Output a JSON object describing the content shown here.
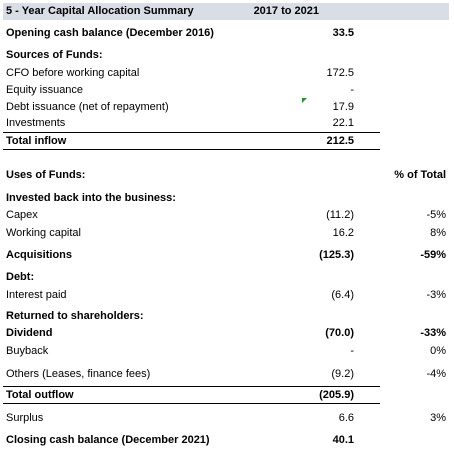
{
  "header": {
    "title": "5 - Year Capital Allocation Summary",
    "period": "2017 to 2021"
  },
  "opening": {
    "label": "Opening cash balance (December 2016)",
    "value": "33.5"
  },
  "sources": {
    "heading": "Sources of Funds:",
    "items": [
      {
        "label": "CFO before working capital",
        "value": "172.5"
      },
      {
        "label": "Equity issuance",
        "value": "-"
      },
      {
        "label": "Debt issuance (net of repayment)",
        "value": "17.9"
      },
      {
        "label": "Investments",
        "value": "22.1"
      }
    ],
    "total": {
      "label": "Total inflow",
      "value": "212.5"
    }
  },
  "uses": {
    "heading": "Uses of Funds:",
    "pct_header": "% of Total",
    "invested_heading": "Invested back into the business:",
    "capex": {
      "label": "Capex",
      "value": "(11.2)",
      "pct": "-5%"
    },
    "working_capital": {
      "label": "Working capital",
      "value": "16.2",
      "pct": "8%"
    },
    "acquisitions": {
      "label": "Acquisitions",
      "value": "(125.3)",
      "pct": "-59%"
    },
    "debt_heading": "Debt:",
    "interest": {
      "label": "Interest paid",
      "value": "(6.4)",
      "pct": "-3%"
    },
    "returned_heading": "Returned to shareholders:",
    "dividend": {
      "label": "Dividend",
      "value": "(70.0)",
      "pct": "-33%"
    },
    "buyback": {
      "label": "Buyback",
      "value": "-",
      "pct": "0%"
    },
    "others": {
      "label": "Others (Leases, finance fees)",
      "value": "(9.2)",
      "pct": "-4%"
    },
    "total": {
      "label": "Total outflow",
      "value": "(205.9)"
    }
  },
  "surplus": {
    "label": "Surplus",
    "value": "6.6",
    "pct": "3%"
  },
  "closing": {
    "label": "Closing cash balance (December 2021)",
    "value": "40.1"
  }
}
